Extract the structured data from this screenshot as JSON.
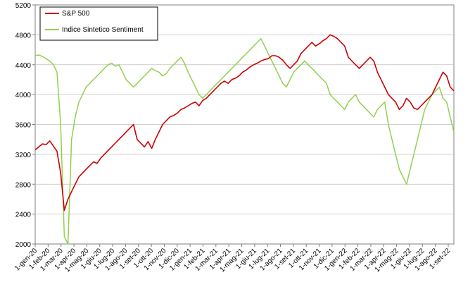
{
  "chart_data": {
    "type": "line",
    "title": "",
    "xlabel": "",
    "ylabel": "",
    "ylim": [
      2000,
      5200
    ],
    "yticks": [
      "2000",
      "2400",
      "2800",
      "3200",
      "3600",
      "4000",
      "4400",
      "4800",
      "5200"
    ],
    "xticks": [
      "1-gen-20",
      "1-feb-20",
      "1-mar-20",
      "1-apr-20",
      "1-mag-20",
      "1-giu-20",
      "1-lug-20",
      "1-ago-20",
      "1-set-20",
      "1-ott-20",
      "1-nov-20",
      "1-dic-20",
      "1-gen-21",
      "1-feb-21",
      "1-mar-21",
      "1-apr-21",
      "1-mag-21",
      "1-giu-21",
      "1-lug-21",
      "1-ago-21",
      "1-set-21",
      "1-ott-21",
      "1-nov-21",
      "1-dic-21",
      "1-gen-22",
      "1-feb-22",
      "1-mar-22",
      "1-apr-22",
      "1-mag-22",
      "1-giu-22",
      "1-lug-22",
      "1-ago-22",
      "1-set-22"
    ],
    "grid": "horizontal",
    "legend_position": "top-left",
    "series": [
      {
        "name": "S&P 500",
        "color": "#cc0000",
        "values": [
          3260,
          3300,
          3340,
          3330,
          3380,
          3310,
          3240,
          2950,
          2450,
          2600,
          2700,
          2800,
          2900,
          2950,
          3000,
          3050,
          3100,
          3080,
          3150,
          3200,
          3250,
          3300,
          3350,
          3400,
          3450,
          3500,
          3550,
          3600,
          3400,
          3350,
          3300,
          3370,
          3280,
          3400,
          3500,
          3600,
          3650,
          3700,
          3720,
          3750,
          3800,
          3820,
          3850,
          3880,
          3900,
          3850,
          3920,
          3950,
          4000,
          4050,
          4100,
          4150,
          4180,
          4150,
          4200,
          4220,
          4250,
          4300,
          4330,
          4370,
          4400,
          4420,
          4450,
          4470,
          4480,
          4520,
          4520,
          4500,
          4460,
          4400,
          4350,
          4400,
          4450,
          4550,
          4600,
          4650,
          4700,
          4650,
          4680,
          4720,
          4750,
          4800,
          4780,
          4750,
          4700,
          4650,
          4500,
          4450,
          4400,
          4350,
          4400,
          4450,
          4500,
          4450,
          4300,
          4200,
          4100,
          4000,
          3950,
          3900,
          3800,
          3850,
          3950,
          3900,
          3820,
          3800,
          3850,
          3900,
          3950,
          4000,
          4100,
          4200,
          4300,
          4250,
          4100,
          4050
        ]
      },
      {
        "name": "Indice Sintetico Sentiment",
        "color": "#92d050",
        "values": [
          4520,
          4530,
          4510,
          4480,
          4450,
          4400,
          4300,
          3600,
          2100,
          2000,
          3400,
          3700,
          3900,
          4000,
          4100,
          4150,
          4200,
          4250,
          4300,
          4350,
          4400,
          4420,
          4380,
          4400,
          4300,
          4200,
          4150,
          4100,
          4150,
          4200,
          4250,
          4300,
          4350,
          4320,
          4300,
          4250,
          4280,
          4350,
          4400,
          4450,
          4500,
          4420,
          4300,
          4200,
          4100,
          4000,
          3950,
          4000,
          4050,
          4100,
          4150,
          4200,
          4250,
          4300,
          4350,
          4400,
          4450,
          4500,
          4550,
          4600,
          4650,
          4700,
          4750,
          4650,
          4550,
          4450,
          4350,
          4250,
          4150,
          4100,
          4200,
          4300,
          4350,
          4400,
          4450,
          4400,
          4350,
          4300,
          4250,
          4200,
          4150,
          4000,
          3950,
          3900,
          3850,
          3800,
          3900,
          3950,
          4000,
          3900,
          3850,
          3800,
          3750,
          3700,
          3800,
          3850,
          3900,
          3600,
          3400,
          3200,
          3000,
          2900,
          2800,
          3000,
          3200,
          3400,
          3600,
          3800,
          3900,
          4000,
          4050,
          4100,
          3950,
          3900,
          3700,
          3500
        ]
      }
    ]
  }
}
